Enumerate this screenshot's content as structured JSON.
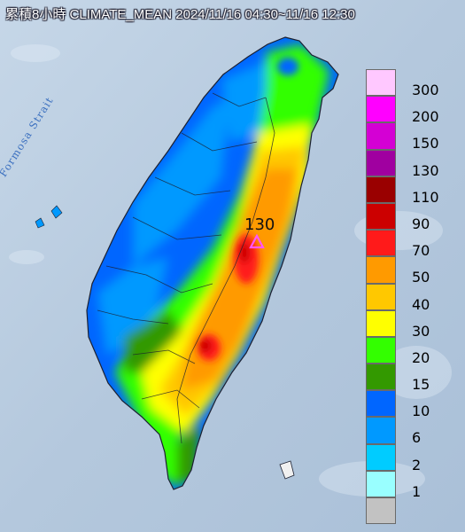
{
  "header": {
    "title": "累積8小時 CLIMATE_MEAN 2024/11/16 04:30~11/16 12:30"
  },
  "map": {
    "strait_label": "Formosa Strait",
    "max_marker": {
      "value": "130",
      "symbol": "triangle",
      "color": "#ff55ff"
    }
  },
  "legend": {
    "items": [
      {
        "label": "300",
        "color": "#ffc8ff"
      },
      {
        "label": "200",
        "color": "#ff00ff"
      },
      {
        "label": "150",
        "color": "#d400d4"
      },
      {
        "label": "130",
        "color": "#a000a0"
      },
      {
        "label": "110",
        "color": "#9a0000"
      },
      {
        "label": "90",
        "color": "#cc0000"
      },
      {
        "label": "70",
        "color": "#ff1a1a"
      },
      {
        "label": "50",
        "color": "#ff9a00"
      },
      {
        "label": "40",
        "color": "#ffc800"
      },
      {
        "label": "30",
        "color": "#ffff00"
      },
      {
        "label": "20",
        "color": "#33ff00"
      },
      {
        "label": "15",
        "color": "#339900"
      },
      {
        "label": "10",
        "color": "#0066ff"
      },
      {
        "label": "6",
        "color": "#0099ff"
      },
      {
        "label": "2",
        "color": "#00ccff"
      },
      {
        "label": "1",
        "color": "#99ffff"
      },
      {
        "label": "",
        "color": "#c2c2c2"
      }
    ]
  }
}
